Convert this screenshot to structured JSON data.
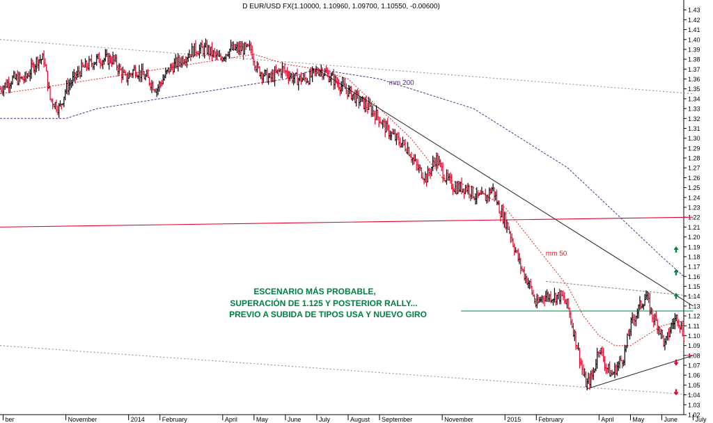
{
  "chart_data": {
    "type": "candlestick",
    "title": "D EUR/USD FX(1.10000, 1.10960, 1.09700, 1.10550, -0.00600)",
    "y_range": [
      1.02,
      1.44
    ],
    "y_ticks": [
      1.02,
      1.03,
      1.04,
      1.05,
      1.06,
      1.07,
      1.08,
      1.09,
      1.1,
      1.11,
      1.12,
      1.13,
      1.14,
      1.15,
      1.16,
      1.17,
      1.18,
      1.19,
      1.2,
      1.21,
      1.22,
      1.23,
      1.24,
      1.25,
      1.26,
      1.27,
      1.28,
      1.29,
      1.3,
      1.31,
      1.32,
      1.33,
      1.34,
      1.35,
      1.36,
      1.37,
      1.38,
      1.39,
      1.4,
      1.41,
      1.42,
      1.43
    ],
    "x_range": [
      -1.1,
      20.7
    ],
    "x_ticks": [
      {
        "label": "ber",
        "x": -1.0
      },
      {
        "label": "November",
        "x": 1
      },
      {
        "label": "2014",
        "x": 3
      },
      {
        "label": "February",
        "x": 4
      },
      {
        "label": "April",
        "x": 6
      },
      {
        "label": "May",
        "x": 7
      },
      {
        "label": "June",
        "x": 8
      },
      {
        "label": "July",
        "x": 9
      },
      {
        "label": "August",
        "x": 10
      },
      {
        "label": "September",
        "x": 11
      },
      {
        "label": "November",
        "x": 13
      },
      {
        "label": "2015",
        "x": 15
      },
      {
        "label": "February",
        "x": 16
      },
      {
        "label": "April",
        "x": 18
      },
      {
        "label": "May",
        "x": 19
      },
      {
        "label": "June",
        "x": 20
      },
      {
        "label": "July",
        "x": 21
      }
    ],
    "price_path": [
      [
        -1.1,
        1.35
      ],
      [
        -0.7,
        1.36
      ],
      [
        -0.3,
        1.36
      ],
      [
        0.1,
        1.38
      ],
      [
        0.3,
        1.38
      ],
      [
        0.5,
        1.34
      ],
      [
        0.8,
        1.33
      ],
      [
        1.0,
        1.35
      ],
      [
        1.5,
        1.37
      ],
      [
        2.0,
        1.38
      ],
      [
        2.5,
        1.38
      ],
      [
        2.9,
        1.36
      ],
      [
        3.2,
        1.37
      ],
      [
        3.6,
        1.36
      ],
      [
        3.9,
        1.35
      ],
      [
        4.3,
        1.37
      ],
      [
        4.7,
        1.38
      ],
      [
        5.1,
        1.39
      ],
      [
        5.5,
        1.39
      ],
      [
        5.9,
        1.38
      ],
      [
        6.2,
        1.39
      ],
      [
        6.5,
        1.39
      ],
      [
        6.9,
        1.39
      ],
      [
        7.1,
        1.37
      ],
      [
        7.5,
        1.36
      ],
      [
        7.9,
        1.37
      ],
      [
        8.3,
        1.36
      ],
      [
        8.7,
        1.36
      ],
      [
        9.1,
        1.37
      ],
      [
        9.5,
        1.36
      ],
      [
        9.9,
        1.35
      ],
      [
        10.3,
        1.34
      ],
      [
        10.7,
        1.33
      ],
      [
        11.0,
        1.32
      ],
      [
        11.2,
        1.31
      ],
      [
        11.5,
        1.3
      ],
      [
        11.9,
        1.29
      ],
      [
        12.2,
        1.27
      ],
      [
        12.5,
        1.26
      ],
      [
        12.8,
        1.28
      ],
      [
        13.1,
        1.26
      ],
      [
        13.4,
        1.25
      ],
      [
        13.8,
        1.25
      ],
      [
        14.1,
        1.24
      ],
      [
        14.4,
        1.24
      ],
      [
        14.6,
        1.25
      ],
      [
        14.8,
        1.23
      ],
      [
        15.1,
        1.21
      ],
      [
        15.3,
        1.19
      ],
      [
        15.5,
        1.17
      ],
      [
        15.8,
        1.15
      ],
      [
        16.0,
        1.13
      ],
      [
        16.2,
        1.14
      ],
      [
        16.5,
        1.14
      ],
      [
        16.8,
        1.14
      ],
      [
        17.0,
        1.13
      ],
      [
        17.3,
        1.09
      ],
      [
        17.5,
        1.06
      ],
      [
        17.6,
        1.05
      ],
      [
        17.8,
        1.06
      ],
      [
        18.0,
        1.09
      ],
      [
        18.2,
        1.07
      ],
      [
        18.4,
        1.06
      ],
      [
        18.6,
        1.07
      ],
      [
        18.8,
        1.08
      ],
      [
        19.0,
        1.11
      ],
      [
        19.3,
        1.13
      ],
      [
        19.5,
        1.14
      ],
      [
        19.7,
        1.12
      ],
      [
        19.9,
        1.11
      ],
      [
        20.1,
        1.09
      ],
      [
        20.3,
        1.11
      ],
      [
        20.5,
        1.12
      ],
      [
        20.6,
        1.11
      ],
      [
        20.7,
        1.1
      ]
    ],
    "ma50_path": [
      [
        -1.1,
        1.345
      ],
      [
        0.0,
        1.35
      ],
      [
        1.0,
        1.355
      ],
      [
        2.0,
        1.36
      ],
      [
        3.0,
        1.365
      ],
      [
        4.0,
        1.37
      ],
      [
        5.0,
        1.375
      ],
      [
        6.0,
        1.38
      ],
      [
        7.0,
        1.385
      ],
      [
        8.0,
        1.375
      ],
      [
        9.0,
        1.37
      ],
      [
        10.0,
        1.36
      ],
      [
        11.0,
        1.33
      ],
      [
        12.0,
        1.3
      ],
      [
        13.0,
        1.26
      ],
      [
        14.0,
        1.25
      ],
      [
        15.0,
        1.23
      ],
      [
        16.0,
        1.19
      ],
      [
        17.0,
        1.15
      ],
      [
        17.5,
        1.12
      ],
      [
        18.0,
        1.1
      ],
      [
        18.5,
        1.09
      ],
      [
        19.0,
        1.09
      ],
      [
        19.5,
        1.1
      ],
      [
        20.0,
        1.11
      ],
      [
        20.7,
        1.115
      ]
    ],
    "ma200_path": [
      [
        -1.1,
        1.32
      ],
      [
        1.0,
        1.32
      ],
      [
        2.0,
        1.33
      ],
      [
        4.0,
        1.34
      ],
      [
        6.0,
        1.35
      ],
      [
        7.0,
        1.355
      ],
      [
        8.0,
        1.36
      ],
      [
        9.0,
        1.37
      ],
      [
        10.0,
        1.365
      ],
      [
        11.0,
        1.36
      ],
      [
        12.0,
        1.35
      ],
      [
        13.0,
        1.34
      ],
      [
        14.0,
        1.33
      ],
      [
        15.0,
        1.31
      ],
      [
        16.0,
        1.29
      ],
      [
        17.0,
        1.27
      ],
      [
        18.0,
        1.24
      ],
      [
        19.0,
        1.21
      ],
      [
        20.0,
        1.18
      ],
      [
        20.7,
        1.16
      ]
    ],
    "lines": [
      {
        "name": "upper-channel",
        "from": [
          -1.1,
          1.4
        ],
        "to": [
          21.0,
          1.345
        ],
        "color": "#909090",
        "dash": "2,3"
      },
      {
        "name": "lower-channel",
        "from": [
          -1.1,
          1.09
        ],
        "to": [
          21.0,
          1.04
        ],
        "color": "#909090",
        "dash": "2,3"
      },
      {
        "name": "long-trend-red",
        "from": [
          -1.1,
          1.21
        ],
        "to": [
          21.0,
          1.22
        ],
        "color": "#e8002a",
        "dash": ""
      },
      {
        "name": "downtrend-line",
        "from": [
          9.0,
          1.37
        ],
        "to": [
          21.0,
          1.13
        ],
        "color": "#303030",
        "dash": ""
      },
      {
        "name": "rising-support",
        "from": [
          17.6,
          1.046
        ],
        "to": [
          21.0,
          1.08
        ],
        "color": "#303030",
        "dash": ""
      },
      {
        "name": "triangle-top",
        "from": [
          16.3,
          1.155
        ],
        "to": [
          21.0,
          1.14
        ],
        "color": "#909090",
        "dash": "3,2"
      },
      {
        "name": "level-1125",
        "from": [
          13.6,
          1.125
        ],
        "to": [
          21.0,
          1.125
        ],
        "color": "#008040",
        "dash": ""
      },
      {
        "name": "level-108",
        "from": [
          20.8,
          1.08
        ],
        "to": [
          21.0,
          1.08
        ],
        "color": "#e8002a",
        "dash": ""
      }
    ],
    "annotations": [
      {
        "name": "mm-200-label",
        "text": "mm 200",
        "x": 11.3,
        "y": 1.354,
        "color": "#5a2a8a"
      },
      {
        "name": "mm-50-label",
        "text": "mm 50",
        "x": 16.3,
        "y": 1.181,
        "color": "#e02020"
      }
    ],
    "arrows": [
      {
        "name": "green-up-arrow-1",
        "y": 1.187,
        "color": "#008040",
        "dir": "up"
      },
      {
        "name": "green-up-arrow-2",
        "y": 1.164,
        "color": "#008040",
        "dir": "up"
      },
      {
        "name": "green-up-arrow-3",
        "y": 1.14,
        "color": "#008040",
        "dir": "up"
      },
      {
        "name": "red-down-arrow-1",
        "y": 1.073,
        "color": "#e8002a",
        "dir": "down"
      },
      {
        "name": "red-down-arrow-2",
        "y": 1.043,
        "color": "#e8002a",
        "dir": "down"
      }
    ],
    "scenario_text": [
      "ESCENARIO MÁS PROBABLE,",
      "SUPERACIÓN DE 1.125 Y POSTERIOR RALLY...",
      "PREVIO A SUBIDA DE TIPOS USA Y NUEVO GIRO"
    ],
    "colors": {
      "price_up": "#000000",
      "price_down": "#e8002a",
      "ma50": "#e02020",
      "ma200": "#5a2a8a",
      "scenario": "#008040",
      "axis_text": "#000000"
    }
  }
}
